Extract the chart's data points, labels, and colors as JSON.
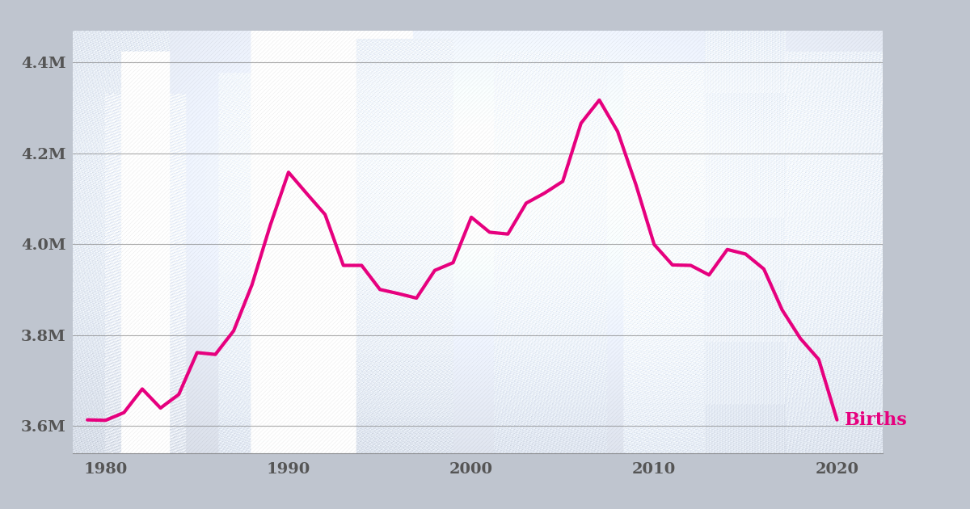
{
  "years": [
    1979,
    1980,
    1981,
    1982,
    1983,
    1984,
    1985,
    1986,
    1987,
    1988,
    1989,
    1990,
    1991,
    1992,
    1993,
    1994,
    1995,
    1996,
    1997,
    1998,
    1999,
    2000,
    2001,
    2002,
    2003,
    2004,
    2005,
    2006,
    2007,
    2008,
    2009,
    2010,
    2011,
    2012,
    2013,
    2014,
    2015,
    2016,
    2017,
    2018,
    2019,
    2020
  ],
  "births": [
    3613000,
    3612000,
    3629000,
    3681000,
    3639000,
    3669000,
    3761000,
    3757000,
    3809000,
    3910000,
    4041000,
    4158000,
    4111000,
    4065000,
    3953000,
    3953000,
    3900000,
    3891000,
    3881000,
    3942000,
    3959000,
    4059000,
    4026000,
    4022000,
    4090000,
    4112000,
    4138000,
    4266000,
    4317000,
    4248000,
    4131000,
    3999000,
    3954000,
    3953000,
    3932000,
    3988000,
    3978000,
    3945000,
    3855000,
    3792000,
    3746000,
    3613000
  ],
  "line_color": "#e6007e",
  "line_width": 3.0,
  "label_text": "Births",
  "label_color": "#e6007e",
  "ytick_values": [
    3600000,
    3800000,
    4000000,
    4200000,
    4400000
  ],
  "ytick_labels": [
    "3.6M",
    "3.8M",
    "4.0M",
    "4.2M",
    "4.4M"
  ],
  "xtick_values": [
    1980,
    1990,
    2000,
    2010,
    2020
  ],
  "xtick_labels": [
    "1980",
    "1990",
    "2000",
    "2010",
    "2020"
  ],
  "ylim": [
    3540000,
    4470000
  ],
  "xlim": [
    1978.2,
    2022.5
  ],
  "grid_color": "#777777",
  "grid_alpha": 0.6,
  "grid_linewidth": 0.8,
  "bg_color": "#bfc5cf",
  "tick_color": "#555555",
  "tick_fontsize": 14,
  "label_fontsize": 16
}
